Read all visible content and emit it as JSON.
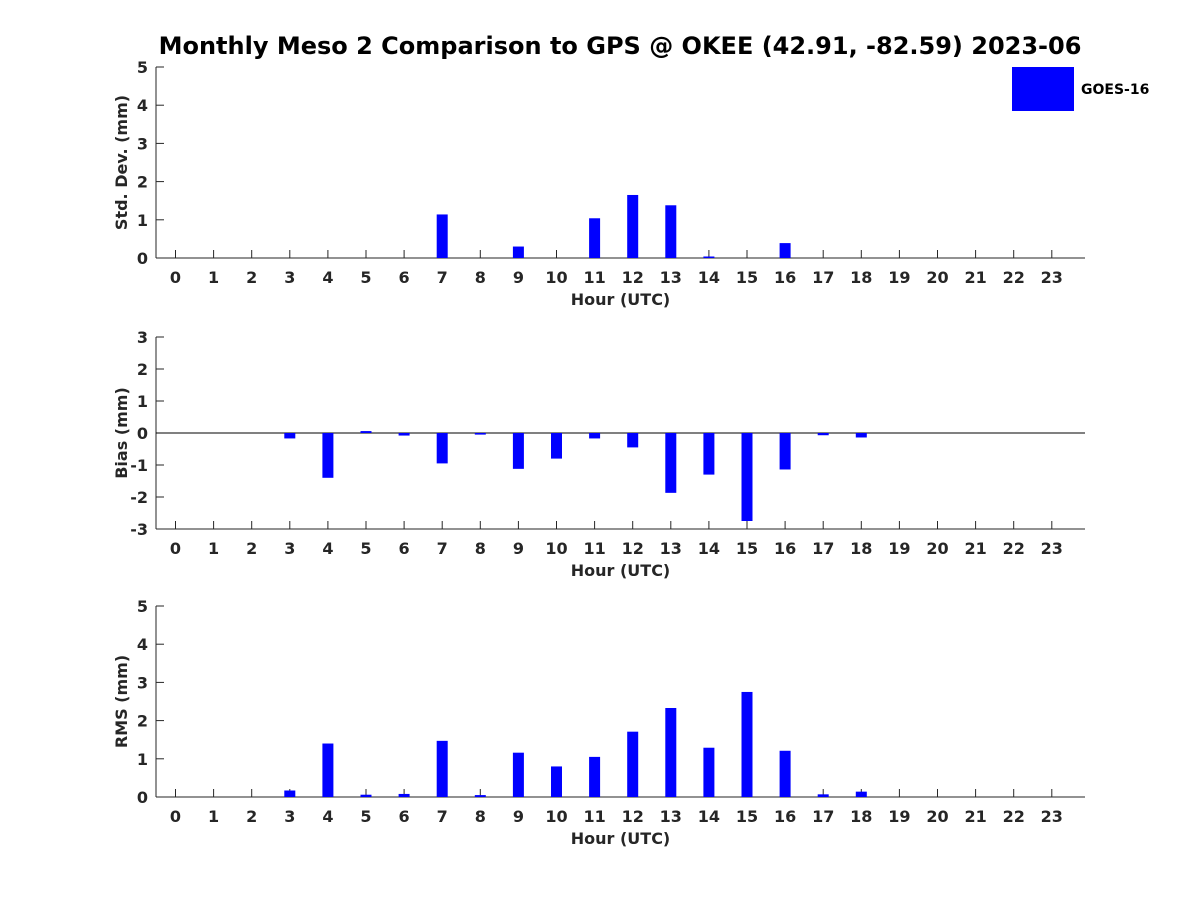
{
  "title": "Monthly Meso 2 Comparison to GPS @ OKEE (42.91, -82.59) 2023-06",
  "legend": {
    "label": "GOES-16",
    "color": "#0000ff"
  },
  "chart_data": [
    {
      "type": "bar",
      "name": "std-dev",
      "ylabel": "Std. Dev. (mm)",
      "xlabel": "Hour (UTC)",
      "ylim": [
        0,
        5
      ],
      "yticks": [
        0,
        1,
        2,
        3,
        4,
        5
      ],
      "categories": [
        0,
        1,
        2,
        3,
        4,
        5,
        6,
        7,
        8,
        9,
        10,
        11,
        12,
        13,
        14,
        15,
        16,
        17,
        18,
        19,
        20,
        21,
        22,
        23
      ],
      "series": [
        {
          "name": "GOES-16",
          "values": [
            0,
            0,
            0,
            0,
            0,
            0,
            0,
            1.14,
            0,
            0.3,
            0,
            1.04,
            1.65,
            1.38,
            0.03,
            0,
            0.39,
            0,
            0,
            0,
            0,
            0,
            0,
            0
          ]
        }
      ]
    },
    {
      "type": "bar",
      "name": "bias",
      "ylabel": "Bias (mm)",
      "xlabel": "Hour (UTC)",
      "ylim": [
        -3,
        3
      ],
      "yticks": [
        -3,
        -2,
        -1,
        0,
        1,
        2,
        3
      ],
      "zero_line": true,
      "categories": [
        0,
        1,
        2,
        3,
        4,
        5,
        6,
        7,
        8,
        9,
        10,
        11,
        12,
        13,
        14,
        15,
        16,
        17,
        18,
        19,
        20,
        21,
        22,
        23
      ],
      "series": [
        {
          "name": "GOES-16",
          "values": [
            0,
            0,
            0,
            -0.17,
            -1.4,
            0.06,
            -0.08,
            -0.95,
            -0.05,
            -1.12,
            -0.8,
            -0.17,
            -0.45,
            -1.87,
            -1.3,
            -2.75,
            -1.14,
            -0.07,
            -0.14,
            0,
            0,
            0,
            0,
            0
          ]
        }
      ]
    },
    {
      "type": "bar",
      "name": "rms",
      "ylabel": "RMS (mm)",
      "xlabel": "Hour (UTC)",
      "ylim": [
        0,
        5
      ],
      "yticks": [
        0,
        1,
        2,
        3,
        4,
        5
      ],
      "categories": [
        0,
        1,
        2,
        3,
        4,
        5,
        6,
        7,
        8,
        9,
        10,
        11,
        12,
        13,
        14,
        15,
        16,
        17,
        18,
        19,
        20,
        21,
        22,
        23
      ],
      "series": [
        {
          "name": "GOES-16",
          "values": [
            0,
            0,
            0,
            0.17,
            1.4,
            0.06,
            0.08,
            1.47,
            0.05,
            1.16,
            0.8,
            1.05,
            1.71,
            2.33,
            1.29,
            2.75,
            1.21,
            0.07,
            0.14,
            0,
            0,
            0,
            0,
            0
          ]
        }
      ]
    }
  ]
}
